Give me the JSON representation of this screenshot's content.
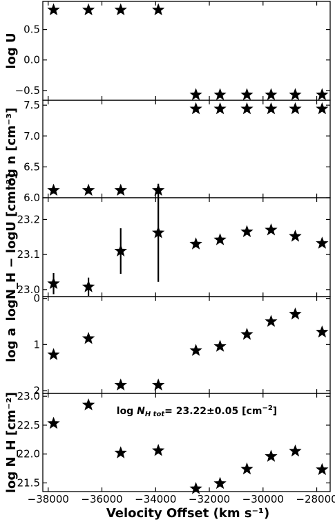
{
  "chart_data": {
    "type": "scatter",
    "x_label": "Velocity Offset (km s⁻¹)",
    "x_ticks": [
      -38000,
      -36000,
      -34000,
      -32000,
      -30000,
      -28000
    ],
    "x_tick_labels": [
      "−38000",
      "−36000",
      "−34000",
      "−32000",
      "−30000",
      "−28000"
    ],
    "xlim": [
      -38200,
      -27500
    ],
    "marker": "star",
    "panels": [
      {
        "ylabel_html": "log U",
        "ylim": [
          -0.66,
          0.96
        ],
        "y_ticks": [
          0.5,
          0.0,
          -0.5
        ],
        "y_tick_labels": [
          "0.5",
          "0.0",
          "−0.5"
        ],
        "points": [
          {
            "x": -37800,
            "y": 0.82,
            "err": 0.05
          },
          {
            "x": -36500,
            "y": 0.82,
            "err": 0.05
          },
          {
            "x": -35300,
            "y": 0.82,
            "err": 0.05
          },
          {
            "x": -33900,
            "y": 0.82,
            "err": 0.05
          },
          {
            "x": -32500,
            "y": -0.57,
            "err": 0
          },
          {
            "x": -31600,
            "y": -0.57,
            "err": 0
          },
          {
            "x": -30600,
            "y": -0.57,
            "err": 0
          },
          {
            "x": -29700,
            "y": -0.57,
            "err": 0
          },
          {
            "x": -28800,
            "y": -0.57,
            "err": 0
          },
          {
            "x": -27800,
            "y": -0.57,
            "err": 0
          }
        ]
      },
      {
        "ylabel_html": "log n [cm⁻³]",
        "ylim": [
          6.0,
          7.58
        ],
        "y_ticks": [
          7.5,
          7.0,
          6.5,
          6.0
        ],
        "y_tick_labels": [
          "7.5",
          "7.0",
          "6.5",
          "6.0"
        ],
        "points": [
          {
            "x": -37800,
            "y": 6.12,
            "err": 0.05
          },
          {
            "x": -36500,
            "y": 6.12,
            "err": 0.05
          },
          {
            "x": -35300,
            "y": 6.12,
            "err": 0.05
          },
          {
            "x": -33900,
            "y": 6.12,
            "err": 0.05
          },
          {
            "x": -32500,
            "y": 7.44,
            "err": 0
          },
          {
            "x": -31600,
            "y": 7.44,
            "err": 0
          },
          {
            "x": -30600,
            "y": 7.44,
            "err": 0
          },
          {
            "x": -29700,
            "y": 7.44,
            "err": 0
          },
          {
            "x": -28800,
            "y": 7.44,
            "err": 0
          },
          {
            "x": -27800,
            "y": 7.44,
            "err": 0
          }
        ]
      },
      {
        "ylabel_html": "logN_H − logU [cm⁻²]",
        "ylim": [
          22.98,
          23.262
        ],
        "y_ticks": [
          23.2,
          23.1,
          23.0
        ],
        "y_tick_labels": [
          "23.2",
          "23.1",
          "23.0"
        ],
        "points": [
          {
            "x": -37800,
            "y": 23.017,
            "err": 0.03
          },
          {
            "x": -36500,
            "y": 23.008,
            "err": 0.026
          },
          {
            "x": -35300,
            "y": 23.11,
            "err": 0.065
          },
          {
            "x": -33900,
            "y": 23.162,
            "err": 0.14
          },
          {
            "x": -32500,
            "y": 23.13,
            "err": 0
          },
          {
            "x": -31600,
            "y": 23.142,
            "err": 0
          },
          {
            "x": -30600,
            "y": 23.165,
            "err": 0
          },
          {
            "x": -29700,
            "y": 23.17,
            "err": 0
          },
          {
            "x": -28800,
            "y": 23.152,
            "err": 0
          },
          {
            "x": -27800,
            "y": 23.132,
            "err": 0
          }
        ]
      },
      {
        "ylabel_html": "log a",
        "ylim": [
          -0.04,
          2.06
        ],
        "inverted": true,
        "y_ticks": [
          0,
          1,
          2
        ],
        "y_tick_labels": [
          "0",
          "1",
          "2"
        ],
        "points": [
          {
            "x": -37800,
            "y": 1.22,
            "err": 0
          },
          {
            "x": -36500,
            "y": 0.87,
            "err": 0
          },
          {
            "x": -35300,
            "y": 1.88,
            "err": 0
          },
          {
            "x": -33900,
            "y": 1.88,
            "err": 0
          },
          {
            "x": -32500,
            "y": 1.13,
            "err": 0
          },
          {
            "x": -31600,
            "y": 1.04,
            "err": 0
          },
          {
            "x": -30600,
            "y": 0.78,
            "err": 0
          },
          {
            "x": -29700,
            "y": 0.5,
            "err": 0
          },
          {
            "x": -28800,
            "y": 0.34,
            "err": 0
          },
          {
            "x": -27800,
            "y": 0.73,
            "err": 0
          }
        ]
      },
      {
        "ylabel_html": "log N_H [cm⁻²]",
        "ylim": [
          21.35,
          23.05
        ],
        "y_ticks": [
          23.0,
          22.5,
          22.0,
          21.5
        ],
        "y_tick_labels": [
          "23.0",
          "22.5",
          "22.0",
          "21.5"
        ],
        "points": [
          {
            "x": -37800,
            "y": 22.53,
            "err": 0.04
          },
          {
            "x": -36500,
            "y": 22.85,
            "err": 0.04
          },
          {
            "x": -35300,
            "y": 22.02,
            "err": 0
          },
          {
            "x": -33900,
            "y": 22.06,
            "err": 0
          },
          {
            "x": -32500,
            "y": 21.4,
            "err": 0
          },
          {
            "x": -31600,
            "y": 21.49,
            "err": 0
          },
          {
            "x": -30600,
            "y": 21.74,
            "err": 0
          },
          {
            "x": -29700,
            "y": 21.96,
            "err": 0
          },
          {
            "x": -28800,
            "y": 22.05,
            "err": 0
          },
          {
            "x": -27800,
            "y": 21.73,
            "err": 0
          }
        ],
        "annotation": {
          "prefix": "log ",
          "var": "N",
          "var_sub": "H tot",
          "value": "= 23.22±0.05 [cm",
          "unit_sup": "−2",
          "suffix": "]"
        }
      }
    ]
  }
}
